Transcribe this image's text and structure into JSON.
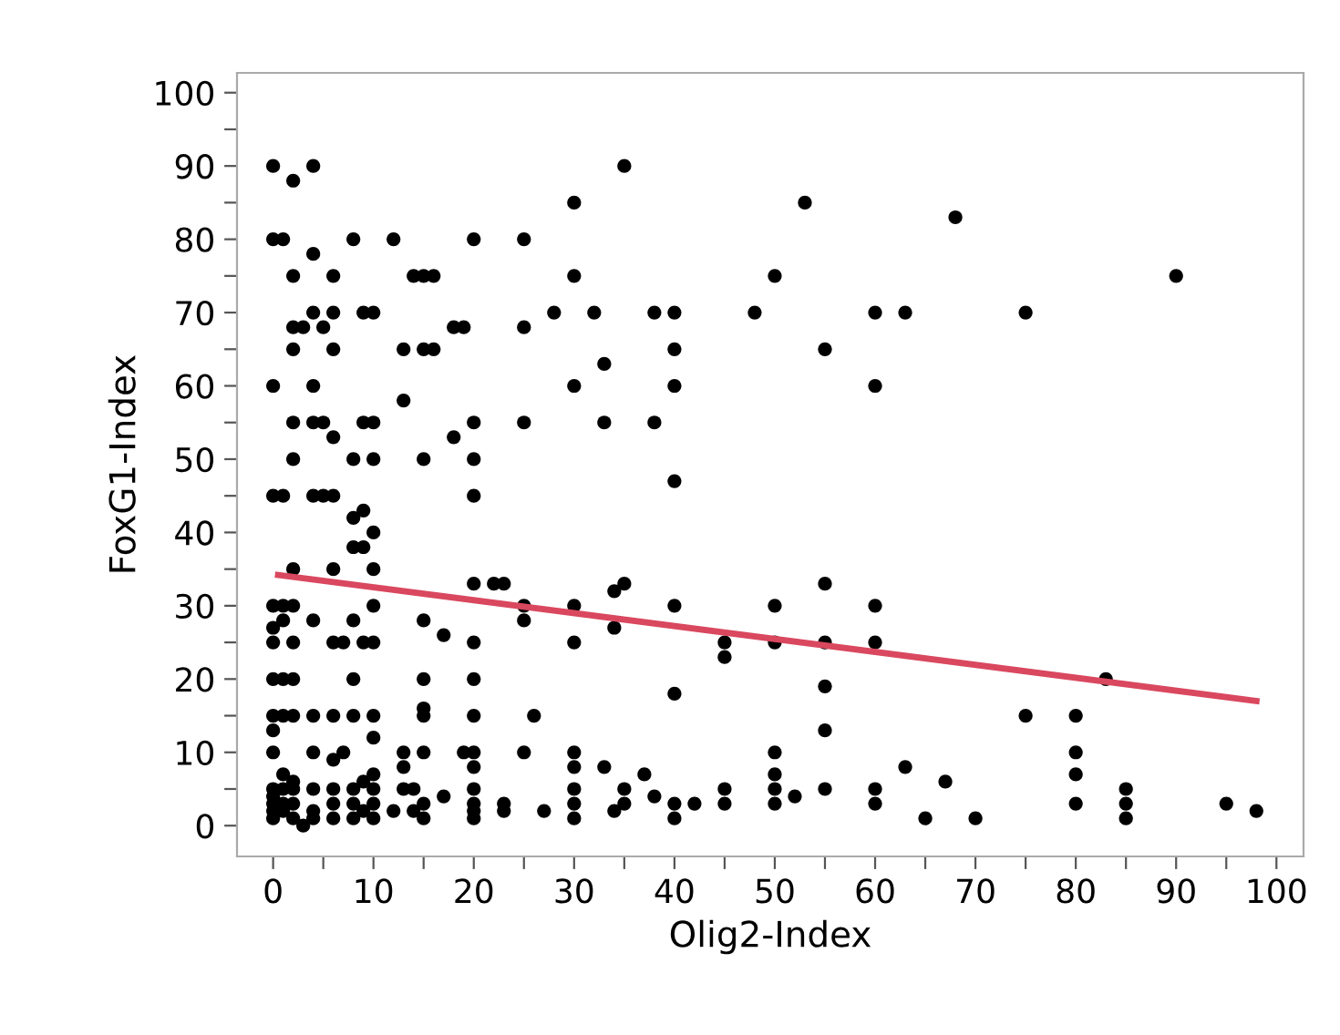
{
  "chart_data": {
    "type": "scatter",
    "xlabel": "Olig2-Index",
    "ylabel": "FoxG1-Index",
    "xlim": [
      -3.6,
      102.7
    ],
    "ylim": [
      -4.2,
      102.7
    ],
    "xticks": [
      0,
      {
        "value": 5,
        "label": null
      },
      10,
      {
        "value": 15,
        "label": null
      },
      20,
      {
        "value": 25,
        "label": null
      },
      30,
      {
        "value": 35,
        "label": null
      },
      40,
      {
        "value": 45,
        "label": null
      },
      50,
      {
        "value": 55,
        "label": null
      },
      60,
      {
        "value": 65,
        "label": null
      },
      70,
      {
        "value": 75,
        "label": null
      },
      80,
      {
        "value": 85,
        "label": null
      },
      90,
      {
        "value": 95,
        "label": null
      },
      100
    ],
    "yticks": [
      0,
      {
        "value": 5,
        "label": null
      },
      10,
      {
        "value": 15,
        "label": null
      },
      20,
      {
        "value": 25,
        "label": null
      },
      30,
      {
        "value": 35,
        "label": null
      },
      40,
      {
        "value": 45,
        "label": null
      },
      50,
      {
        "value": 55,
        "label": null
      },
      60,
      {
        "value": 65,
        "label": null
      },
      70,
      {
        "value": 75,
        "label": null
      },
      80,
      {
        "value": 85,
        "label": null
      },
      90,
      {
        "value": 95,
        "label": null
      },
      100
    ],
    "grid": false,
    "legend": false,
    "marker": "circle",
    "series": [
      {
        "color": "#000000",
        "x": [
          0,
          0,
          0,
          0,
          0,
          0,
          0,
          0,
          0,
          0,
          0,
          0,
          0,
          0,
          0,
          0,
          1,
          1,
          1,
          1,
          1,
          1,
          1,
          1,
          1,
          1,
          2,
          2,
          2,
          2,
          2,
          2,
          2,
          2,
          2,
          2,
          2,
          2,
          2,
          2,
          2,
          3,
          3,
          4,
          4,
          4,
          4,
          4,
          4,
          4,
          4,
          4,
          4,
          4,
          4,
          5,
          5,
          5,
          6,
          6,
          6,
          6,
          6,
          6,
          6,
          6,
          6,
          6,
          6,
          6,
          7,
          7,
          8,
          8,
          8,
          8,
          8,
          8,
          8,
          8,
          8,
          8,
          9,
          9,
          9,
          9,
          9,
          9,
          9,
          10,
          10,
          10,
          10,
          10,
          10,
          10,
          10,
          10,
          10,
          10,
          10,
          10,
          12,
          12,
          13,
          13,
          13,
          13,
          13,
          14,
          14,
          14,
          15,
          15,
          15,
          15,
          15,
          15,
          15,
          15,
          15,
          15,
          16,
          16,
          17,
          17,
          18,
          18,
          19,
          19,
          20,
          20,
          20,
          20,
          20,
          20,
          20,
          20,
          20,
          20,
          20,
          20,
          20,
          20,
          22,
          23,
          23,
          23,
          25,
          25,
          25,
          25,
          25,
          25,
          26,
          27,
          28,
          30,
          30,
          30,
          30,
          30,
          30,
          30,
          30,
          30,
          30,
          32,
          33,
          33,
          33,
          34,
          34,
          34,
          35,
          35,
          35,
          35,
          37,
          38,
          38,
          38,
          40,
          40,
          40,
          40,
          40,
          40,
          40,
          40,
          42,
          45,
          45,
          45,
          45,
          48,
          50,
          50,
          50,
          50,
          50,
          50,
          50,
          52,
          53,
          55,
          55,
          55,
          55,
          55,
          55,
          60,
          60,
          60,
          60,
          60,
          60,
          63,
          63,
          65,
          67,
          68,
          70,
          75,
          75,
          80,
          80,
          80,
          80,
          83,
          85,
          85,
          85,
          90,
          95,
          98
        ],
        "values": [
          90,
          80,
          60,
          45,
          30,
          25,
          20,
          15,
          13,
          10,
          5,
          3,
          2,
          1,
          4,
          27,
          80,
          45,
          30,
          28,
          20,
          15,
          7,
          5,
          3,
          2,
          88,
          75,
          68,
          65,
          55,
          50,
          35,
          30,
          25,
          20,
          15,
          5,
          3,
          6,
          1,
          68,
          0,
          90,
          78,
          70,
          60,
          55,
          45,
          28,
          15,
          10,
          5,
          2,
          1,
          68,
          55,
          45,
          75,
          70,
          65,
          53,
          45,
          35,
          25,
          15,
          9,
          5,
          3,
          1,
          25,
          10,
          80,
          50,
          42,
          38,
          28,
          20,
          15,
          5,
          3,
          1,
          70,
          55,
          43,
          38,
          25,
          6,
          2,
          70,
          55,
          50,
          40,
          35,
          30,
          25,
          15,
          12,
          7,
          5,
          3,
          1,
          80,
          2,
          65,
          58,
          10,
          8,
          5,
          75,
          5,
          2,
          75,
          65,
          50,
          28,
          20,
          16,
          15,
          10,
          3,
          1,
          75,
          65,
          26,
          4,
          68,
          53,
          68,
          10,
          80,
          55,
          50,
          45,
          33,
          25,
          20,
          15,
          10,
          8,
          5,
          3,
          2,
          1,
          33,
          33,
          3,
          2,
          80,
          68,
          55,
          30,
          28,
          10,
          15,
          2,
          70,
          85,
          75,
          60,
          30,
          25,
          10,
          8,
          5,
          3,
          1,
          70,
          63,
          55,
          8,
          27,
          32,
          2,
          90,
          33,
          5,
          3,
          7,
          70,
          55,
          4,
          70,
          65,
          60,
          47,
          30,
          18,
          3,
          1,
          3,
          25,
          23,
          5,
          3,
          70,
          75,
          30,
          25,
          10,
          7,
          5,
          3,
          4,
          85,
          65,
          33,
          25,
          19,
          13,
          5,
          70,
          60,
          30,
          25,
          5,
          3,
          70,
          8,
          1,
          6,
          83,
          1,
          70,
          15,
          15,
          10,
          7,
          3,
          20,
          5,
          3,
          1,
          75,
          3,
          2
        ]
      },
      {
        "type": "line",
        "color": "#d9485f",
        "marker": "none",
        "x": [
          0.5,
          98
        ],
        "values": [
          34.2,
          17
        ]
      }
    ]
  }
}
